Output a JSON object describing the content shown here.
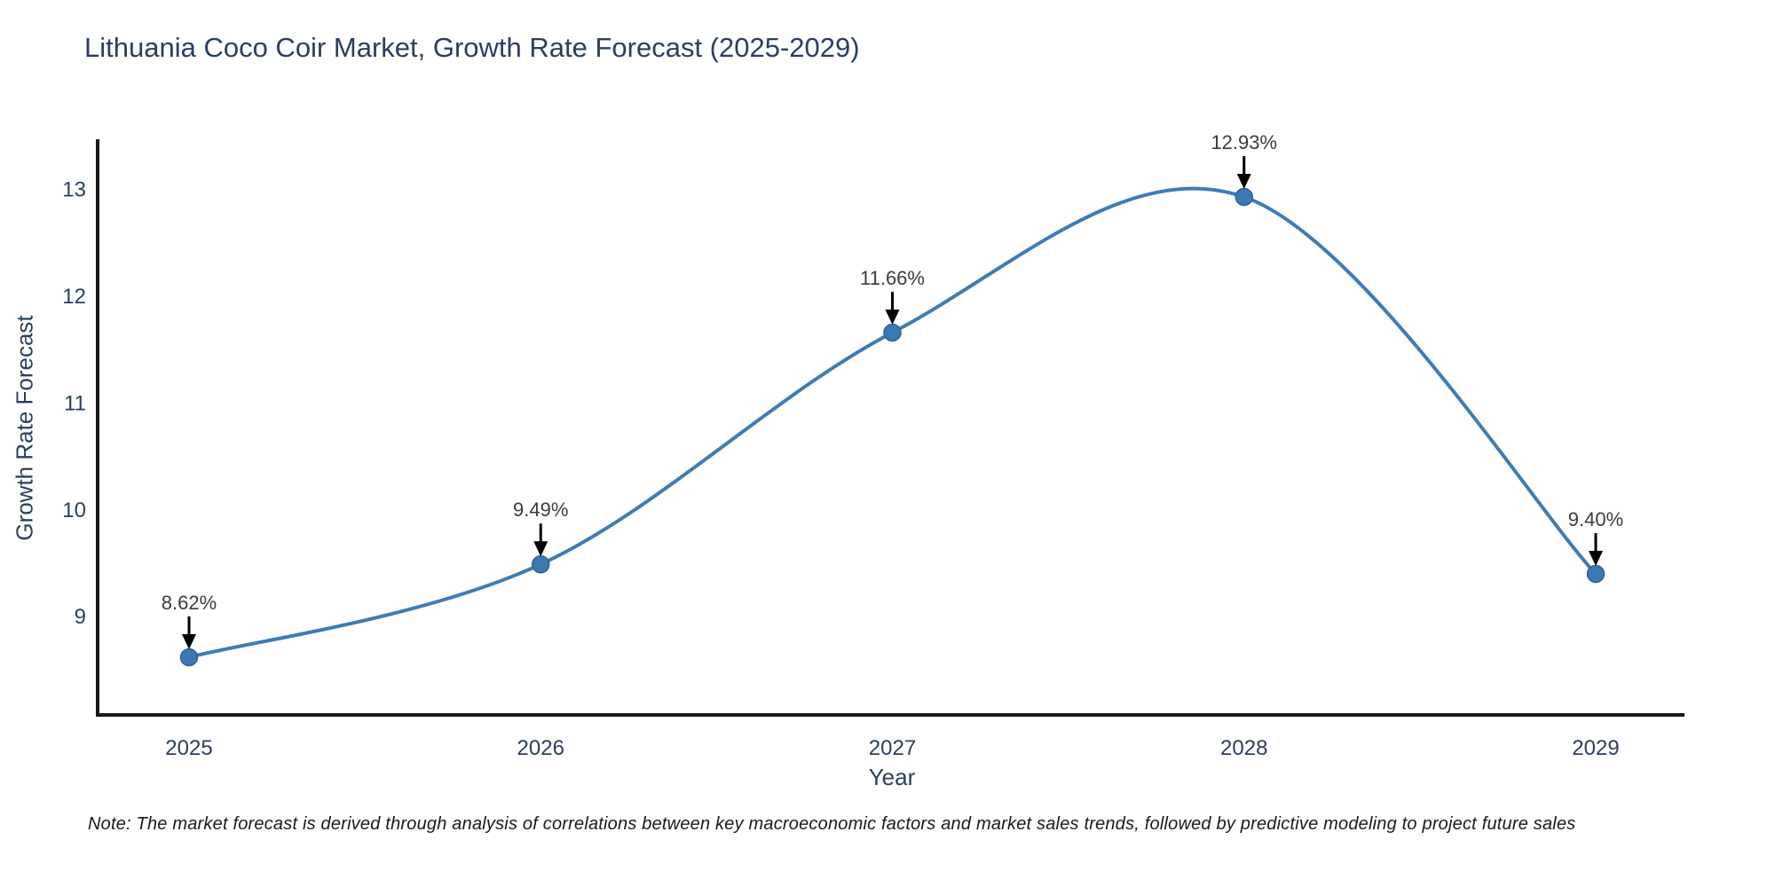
{
  "page": {
    "background": "#ffffff"
  },
  "chart": {
    "title": "Lithuania Coco Coir Market, Growth Rate Forecast (2025-2029)",
    "xlabel": "Year",
    "ylabel": "Growth Rate Forecast",
    "note": "Note: The market forecast is derived through analysis of correlations between key macroeconomic factors and market sales trends, followed by predictive modeling to project future sales",
    "colors": {
      "line": "#3e7cb3",
      "marker_fill": "#3a79b3",
      "marker_edge": "#2e6295",
      "axis": "#1a1a1a",
      "heading_text": "#2a3f5f",
      "annotation_text": "#3b3b3b",
      "arrow": "#000000"
    }
  },
  "chart_data": {
    "type": "line",
    "title": "Lithuania Coco Coir Market, Growth Rate Forecast (2025-2029)",
    "xlabel": "Year",
    "ylabel": "Growth Rate Forecast",
    "x": [
      2025,
      2026,
      2027,
      2028,
      2029
    ],
    "values": [
      8.62,
      9.49,
      11.66,
      12.93,
      9.4
    ],
    "point_labels": [
      "8.62%",
      "9.49%",
      "11.66%",
      "12.93%",
      "9.40%"
    ],
    "series_name": "Growth Rate Forecast",
    "yticks": [
      9,
      10,
      11,
      12,
      13
    ],
    "xticks": [
      "2025",
      "2026",
      "2027",
      "2028",
      "2029"
    ],
    "ylim": [
      8.08,
      13.47
    ],
    "line_shape": "spline",
    "markers": true,
    "grid": false,
    "legend": false,
    "annotations": "value labels with downward arrows above each point"
  }
}
